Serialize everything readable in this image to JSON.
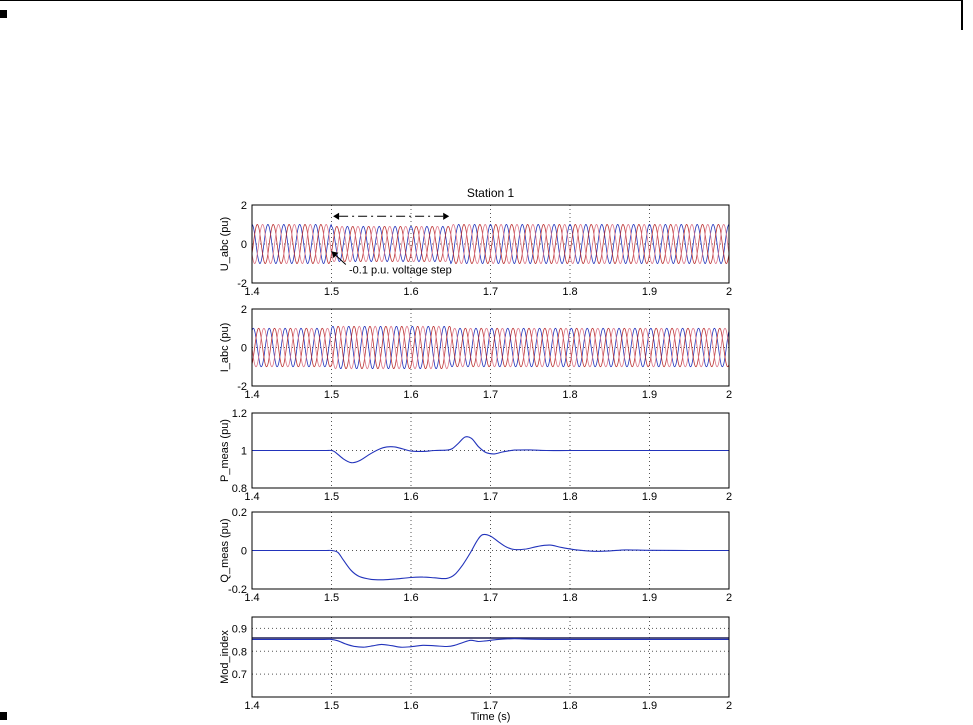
{
  "page": {
    "background": "#ffffff",
    "edge_mark_color": "#000000"
  },
  "chart_data": {
    "type": "line",
    "title": "Station 1",
    "xlabel": "Time (s)",
    "xlim": [
      1.4,
      2
    ],
    "xticks": [
      1.4,
      1.5,
      1.6,
      1.7,
      1.8,
      1.9,
      2
    ],
    "xtick_labels": [
      "1.4",
      "1.5",
      "1.6",
      "1.7",
      "1.8",
      "1.9",
      "2"
    ],
    "grid": true,
    "grid_style": "dotted",
    "subplots": [
      {
        "name": "u-abc",
        "ylabel": "U_abc (pu)",
        "ylim": [
          -2,
          2
        ],
        "yticks": [
          2,
          0,
          -2
        ],
        "ytick_labels": [
          "2",
          "0",
          "-2"
        ],
        "signal": "three_phase_sine",
        "frequency_hz": 50,
        "phases_deg": [
          90,
          -30,
          210
        ],
        "colors": [
          "#2233bb",
          "#bb3333",
          "#dd7788"
        ],
        "amplitude_segments": [
          {
            "t_start": 1.4,
            "t_end": 1.5,
            "amplitude": 1.0
          },
          {
            "t_start": 1.5,
            "t_end": 1.65,
            "amplitude": 0.9
          },
          {
            "t_start": 1.65,
            "t_end": 2.0,
            "amplitude": 1.0
          }
        ],
        "annotations": {
          "step_label": "-0.1 p.u. voltage step",
          "step_label_pos": {
            "t": 1.522,
            "v": -1.5
          },
          "pointer_arrow": {
            "from": {
              "t": 1.518,
              "v": -1.05
            },
            "to": {
              "t": 1.5,
              "v": -0.38
            }
          },
          "span_arrow": {
            "t1": 1.502,
            "t2": 1.648,
            "v": 1.42
          }
        }
      },
      {
        "name": "i-abc",
        "ylabel": "I_abc (pu)",
        "ylim": [
          -2,
          2
        ],
        "yticks": [
          2,
          0,
          -2
        ],
        "ytick_labels": [
          "2",
          "0",
          "-2"
        ],
        "signal": "three_phase_sine",
        "frequency_hz": 50,
        "phases_deg": [
          60,
          -60,
          180
        ],
        "colors": [
          "#2233bb",
          "#bb3333",
          "#dd7788"
        ],
        "amplitude_segments": [
          {
            "t_start": 1.4,
            "t_end": 1.5,
            "amplitude": 1.0
          },
          {
            "t_start": 1.5,
            "t_end": 1.65,
            "amplitude": 1.1
          },
          {
            "t_start": 1.65,
            "t_end": 2.0,
            "amplitude": 1.0
          }
        ]
      },
      {
        "name": "p-meas",
        "ylabel": "P_meas (pu)",
        "ylim": [
          0.8,
          1.2
        ],
        "yticks": [
          1.2,
          1,
          0.8
        ],
        "ytick_labels": [
          "1.2",
          "1",
          "0.8"
        ],
        "signal": "keypoints",
        "series": [
          {
            "name": "p-meas-trace",
            "color": "#2233bb",
            "points": [
              [
                1.4,
                1.0
              ],
              [
                1.45,
                1.0
              ],
              [
                1.49,
                1.0
              ],
              [
                1.5,
                1.0
              ],
              [
                1.505,
                0.99
              ],
              [
                1.515,
                0.955
              ],
              [
                1.525,
                0.935
              ],
              [
                1.535,
                0.945
              ],
              [
                1.55,
                0.985
              ],
              [
                1.565,
                1.015
              ],
              [
                1.578,
                1.02
              ],
              [
                1.59,
                1.008
              ],
              [
                1.6,
                0.997
              ],
              [
                1.615,
                0.995
              ],
              [
                1.63,
                1.0
              ],
              [
                1.645,
                1.002
              ],
              [
                1.652,
                1.01
              ],
              [
                1.66,
                1.04
              ],
              [
                1.668,
                1.072
              ],
              [
                1.676,
                1.065
              ],
              [
                1.685,
                1.02
              ],
              [
                1.695,
                0.988
              ],
              [
                1.705,
                0.982
              ],
              [
                1.715,
                0.992
              ],
              [
                1.73,
                1.002
              ],
              [
                1.75,
                1.003
              ],
              [
                1.77,
                1.0
              ],
              [
                1.8,
                1.0
              ],
              [
                1.85,
                1.0
              ],
              [
                1.9,
                1.0
              ],
              [
                1.95,
                1.0
              ],
              [
                2.0,
                1.0
              ]
            ]
          }
        ]
      },
      {
        "name": "q-meas",
        "ylabel": "Q_meas (pu)",
        "ylim": [
          -0.2,
          0.2
        ],
        "yticks": [
          0.2,
          0,
          -0.2
        ],
        "ytick_labels": [
          "0.2",
          "0",
          "-0.2"
        ],
        "signal": "keypoints",
        "series": [
          {
            "name": "q-meas-trace",
            "color": "#2233bb",
            "points": [
              [
                1.4,
                0
              ],
              [
                1.45,
                0
              ],
              [
                1.49,
                0
              ],
              [
                1.5,
                0
              ],
              [
                1.508,
                -0.01
              ],
              [
                1.515,
                -0.05
              ],
              [
                1.525,
                -0.105
              ],
              [
                1.535,
                -0.135
              ],
              [
                1.55,
                -0.15
              ],
              [
                1.565,
                -0.152
              ],
              [
                1.58,
                -0.148
              ],
              [
                1.6,
                -0.14
              ],
              [
                1.615,
                -0.138
              ],
              [
                1.63,
                -0.142
              ],
              [
                1.645,
                -0.145
              ],
              [
                1.655,
                -0.125
              ],
              [
                1.665,
                -0.075
              ],
              [
                1.675,
                -0.01
              ],
              [
                1.683,
                0.05
              ],
              [
                1.69,
                0.082
              ],
              [
                1.7,
                0.075
              ],
              [
                1.71,
                0.045
              ],
              [
                1.72,
                0.018
              ],
              [
                1.73,
                0.005
              ],
              [
                1.745,
                0.008
              ],
              [
                1.76,
                0.022
              ],
              [
                1.775,
                0.028
              ],
              [
                1.79,
                0.015
              ],
              [
                1.81,
                0.002
              ],
              [
                1.83,
                -0.004
              ],
              [
                1.85,
                -0.002
              ],
              [
                1.87,
                0.003
              ],
              [
                1.9,
                0.001
              ],
              [
                1.95,
                0
              ],
              [
                2.0,
                0
              ]
            ]
          }
        ]
      },
      {
        "name": "mod-index",
        "ylabel": "Mod_index",
        "ylim": [
          0.6,
          0.95
        ],
        "yticks": [
          0.9,
          0.8,
          0.7
        ],
        "ytick_labels": [
          "0.9",
          "0.8",
          "0.7"
        ],
        "signal": "keypoints",
        "series": [
          {
            "name": "mod-index-reference",
            "color": "#222255",
            "width": 1.4,
            "points": [
              [
                1.4,
                0.858
              ],
              [
                2.0,
                0.858
              ]
            ]
          },
          {
            "name": "mod-index-trace",
            "color": "#2233bb",
            "points": [
              [
                1.4,
                0.852
              ],
              [
                1.45,
                0.852
              ],
              [
                1.49,
                0.852
              ],
              [
                1.5,
                0.852
              ],
              [
                1.508,
                0.846
              ],
              [
                1.518,
                0.832
              ],
              [
                1.528,
                0.822
              ],
              [
                1.54,
                0.818
              ],
              [
                1.552,
                0.824
              ],
              [
                1.563,
                0.83
              ],
              [
                1.575,
                0.825
              ],
              [
                1.587,
                0.818
              ],
              [
                1.6,
                0.82
              ],
              [
                1.615,
                0.826
              ],
              [
                1.63,
                0.824
              ],
              [
                1.645,
                0.821
              ],
              [
                1.655,
                0.826
              ],
              [
                1.665,
                0.838
              ],
              [
                1.675,
                0.848
              ],
              [
                1.685,
                0.843
              ],
              [
                1.695,
                0.846
              ],
              [
                1.71,
                0.852
              ],
              [
                1.73,
                0.855
              ],
              [
                1.75,
                0.853
              ],
              [
                1.78,
                0.852
              ],
              [
                1.82,
                0.852
              ],
              [
                1.86,
                0.852
              ],
              [
                1.9,
                0.852
              ],
              [
                1.95,
                0.852
              ],
              [
                2.0,
                0.852
              ]
            ]
          }
        ]
      }
    ]
  }
}
